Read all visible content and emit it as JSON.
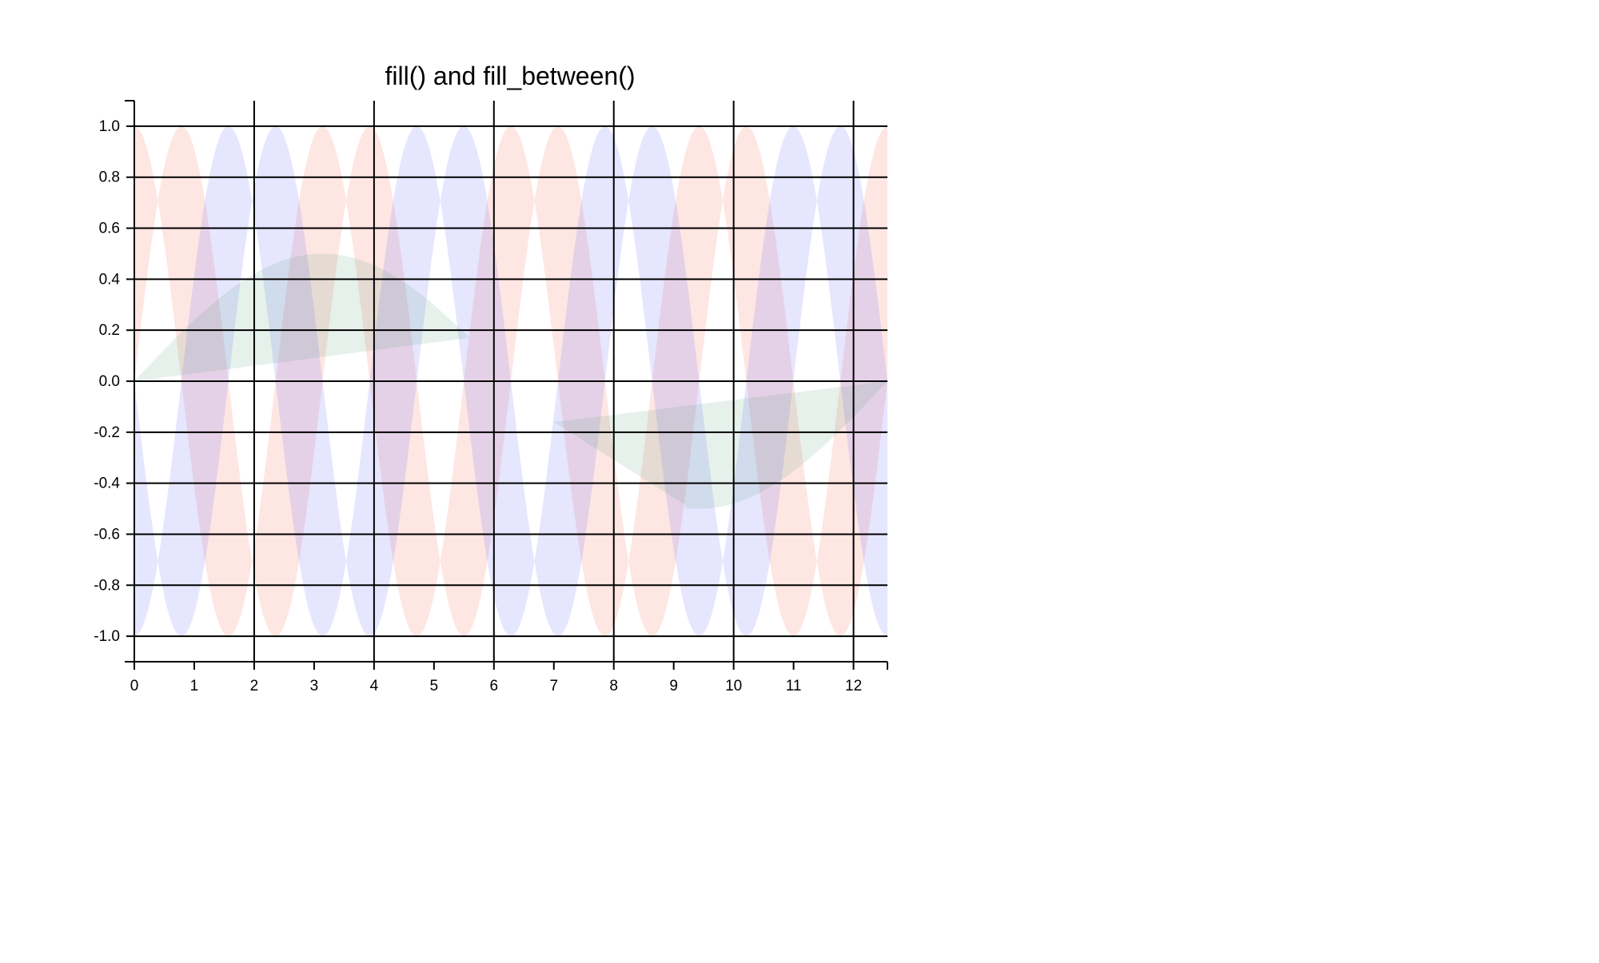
{
  "chart_data": {
    "type": "area",
    "title": "fill() and fill_between()",
    "xlabel": "",
    "ylabel": "",
    "xlim": [
      0,
      12.566
    ],
    "ylim": [
      -1.1,
      1.1
    ],
    "x_ticks": [
      0,
      1,
      2,
      3,
      4,
      5,
      6,
      7,
      8,
      9,
      10,
      11,
      12
    ],
    "y_ticks": [
      1.0,
      0.8,
      0.6,
      0.4,
      0.2,
      0.0,
      -0.2,
      -0.4,
      -0.6,
      -0.8,
      -1.0
    ],
    "y_tick_labels": [
      "1.0",
      "0.8",
      "0.6",
      "0.4",
      "0.2",
      "0.0",
      "-0.2",
      "-0.4",
      "-0.6",
      "-0.8",
      "-1.0"
    ],
    "grid": true,
    "series": [
      {
        "kind": "fill_between",
        "color": "#fa8072",
        "opacity": 0.2,
        "y1": "sin(2x)",
        "y2": "cos(2x)",
        "note": "band between sin(2x) and cos(2x) over 0 to 4*pi; red where sin(2x) is above cos(2x)",
        "x": [
          0,
          0.393,
          0.785,
          1.178,
          1.571,
          1.963,
          2.356,
          2.749,
          3.142,
          3.534,
          3.927,
          4.32,
          4.712,
          5.105,
          5.498,
          5.89,
          6.283,
          6.676,
          7.069,
          7.461,
          7.854,
          8.247,
          8.639,
          9.032,
          9.425,
          9.817,
          10.21,
          10.603,
          10.996,
          11.388,
          11.781,
          12.174,
          12.566
        ],
        "y_upper": [
          1.0,
          0.71,
          1.0,
          0.71,
          0.0,
          -0.71,
          -1.0,
          -0.71,
          0.0,
          0.71,
          1.0,
          0.71,
          0.0,
          -0.71,
          -1.0,
          -0.71,
          0.0,
          0.71,
          1.0,
          0.71,
          0.0,
          -0.71,
          -1.0,
          -0.71,
          0.0,
          0.71,
          1.0,
          0.71,
          0.0,
          -0.71,
          -1.0,
          -0.71,
          0.0
        ]
      },
      {
        "kind": "fill_between",
        "color": "#6a6aff",
        "opacity": 0.17,
        "y1": "-sin(2x)",
        "y2": "-cos(2x)",
        "note": "mirror band between -sin(2x) and -cos(2x) over 0 to 4*pi"
      },
      {
        "kind": "fill",
        "color": "#2e8b57",
        "opacity": 0.12,
        "note": "upper half-lobe of 0.5*sin(x/2) from x=0 to 2*pi, closed by a chord",
        "x": [
          0,
          0.785,
          1.571,
          2.356,
          3.142,
          3.927,
          4.712,
          5.498,
          5.6
        ],
        "y": [
          0.0,
          0.19,
          0.354,
          0.462,
          0.5,
          0.462,
          0.354,
          0.19,
          0.17
        ],
        "closing_chord": {
          "x": [
            5.6,
            0.0
          ],
          "y": [
            0.17,
            0.0
          ]
        }
      },
      {
        "kind": "fill",
        "color": "#2e8b57",
        "opacity": 0.12,
        "note": "lower half-lobe of 0.5*sin(x/2) from x=2*pi to 4*pi, closed by a chord",
        "x": [
          6.283,
          7.069,
          7.854,
          8.639,
          9.425,
          10.21,
          10.996,
          11.781,
          12.566
        ],
        "y": [
          0.0,
          -0.19,
          -0.354,
          -0.462,
          -0.5,
          -0.462,
          -0.354,
          -0.19,
          0.0
        ],
        "closing_chord": {
          "x": [
            12.566,
            7.0
          ],
          "y": [
            0.0,
            -0.16
          ]
        }
      }
    ]
  }
}
